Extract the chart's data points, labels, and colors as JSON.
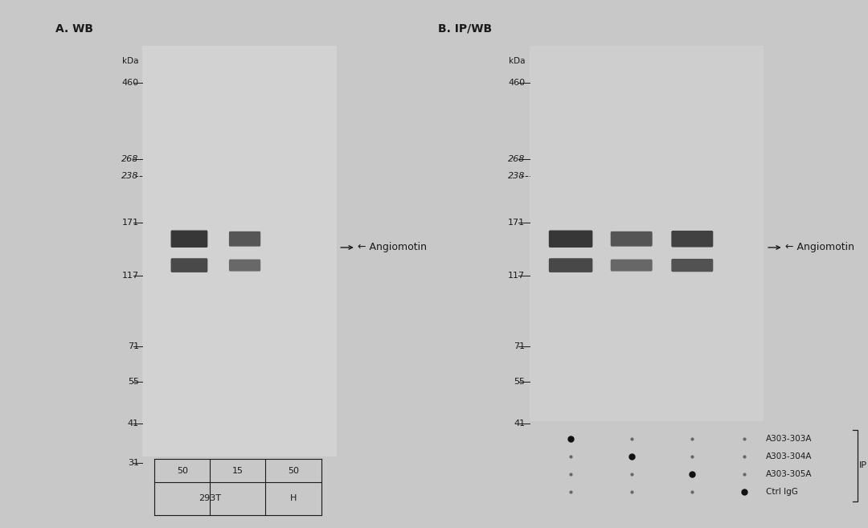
{
  "bg_color": "#c8c8c8",
  "blot_bg": "#d8d8d8",
  "panel_A_title": "A. WB",
  "panel_B_title": "B. IP/WB",
  "mw_vals_A": [
    460,
    268,
    238,
    171,
    117,
    71,
    55,
    41,
    31
  ],
  "mw_vals_B": [
    460,
    268,
    238,
    171,
    117,
    71,
    55,
    41
  ],
  "label_angiomotin": "← Angiomotin",
  "panel_A_lane_amounts": [
    "50",
    "15",
    "50"
  ],
  "panel_A_groups": [
    "293T",
    "H"
  ],
  "panel_B_ip_labels": [
    "A303-303A",
    "A303-304A",
    "A303-305A",
    "Ctrl IgG"
  ],
  "panel_B_ip_bracket": "IP",
  "dot_pattern": [
    [
      true,
      false,
      false,
      false
    ],
    [
      false,
      true,
      false,
      false
    ],
    [
      false,
      false,
      true,
      false
    ],
    [
      false,
      false,
      false,
      true
    ]
  ],
  "text_color": "#1a1a1a",
  "font_size_title": 10,
  "font_size_mw": 8,
  "font_size_band_label": 9,
  "font_size_table": 8,
  "font_size_kda": 7.5
}
